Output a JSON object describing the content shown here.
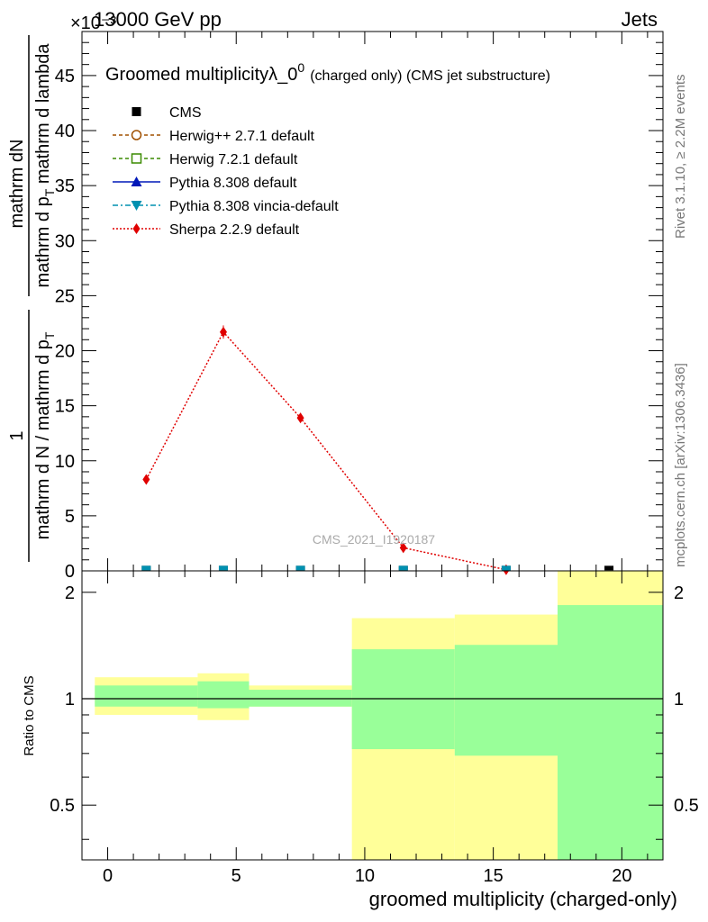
{
  "header": {
    "left": "13000 GeV pp",
    "right": "Jets",
    "exponent": "×10⁻³"
  },
  "chart_data": [
    {
      "type": "scatter",
      "title": "Groomed multiplicity",
      "title_symbol": "λ_0",
      "title_sup": "0",
      "title_note": "(charged only) (CMS jet substructure)",
      "ylabel_numerator": "mathrm dN",
      "ylabel_denominator": "mathrm d p",
      "ylabel_denominator_sub": "T",
      "ylabel_denominator_tail": " mathrm d lambda",
      "ylabel_prefactor_numerator": "1",
      "ylabel_prefactor_denominator": "mathrm d N / mathrm d p",
      "ylabel_prefactor_denominator_sub": "T",
      "xlim": [
        -1,
        21.6
      ],
      "ylim": [
        0,
        49
      ],
      "y_scale_note": "values in units of 1e-3",
      "yticks": [
        0,
        5,
        10,
        15,
        20,
        25,
        30,
        35,
        40,
        45
      ],
      "ytick_labels": [
        "0",
        "5",
        "10",
        "15",
        "20",
        "25",
        "30",
        "35",
        "40",
        "45"
      ],
      "legend_position": "top-left",
      "legend": [
        {
          "label": "CMS",
          "color": "#000000",
          "marker": "square-filled",
          "line": "none"
        },
        {
          "label": "Herwig++ 2.7.1 default",
          "color": "#a05000",
          "marker": "circle-open",
          "line": "dashed"
        },
        {
          "label": "Herwig 7.2.1 default",
          "color": "#3a8a00",
          "marker": "square-open",
          "line": "dashed"
        },
        {
          "label": "Pythia 8.308 default",
          "color": "#0018b8",
          "marker": "triangle-up",
          "line": "solid"
        },
        {
          "label": "Pythia 8.308 vincia-default",
          "color": "#0090b0",
          "marker": "triangle-down",
          "line": "dashdot"
        },
        {
          "label": "Sherpa 2.2.9 default",
          "color": "#e00000",
          "marker": "diamond",
          "line": "dotted"
        }
      ],
      "series": [
        {
          "name": "Sherpa 2.2.9 default",
          "color": "#e00000",
          "x": [
            1.5,
            4.5,
            7.5,
            11.5,
            15.5
          ],
          "y": [
            8.3,
            21.7,
            13.9,
            2.1,
            0.1
          ],
          "err": [
            0.2,
            0.6,
            0.3,
            0.1,
            0.05
          ]
        },
        {
          "name": "CMS",
          "color": "#000000",
          "x": [
            1.5,
            4.5,
            7.5,
            11.5,
            15.5,
            19.5
          ],
          "y": [
            0.05,
            0.05,
            0.05,
            0.05,
            0.05,
            0.05
          ]
        },
        {
          "name": "Pythia 8.308 vincia-default",
          "color": "#0090b0",
          "x": [
            1.5,
            4.5,
            7.5,
            11.5,
            15.5
          ],
          "y": [
            0.05,
            0.05,
            0.05,
            0.05,
            0.05
          ]
        }
      ],
      "watermark": "CMS_2021_I1920187",
      "side_label_top": "Rivet 3.1.10, ≥ 2.2M events",
      "side_label_bottom": "mcplots.cern.ch [arXiv:1306.3436]"
    },
    {
      "type": "bar",
      "title": "",
      "ylabel": "Ratio to CMS",
      "xlabel": "groomed multiplicity (charged-only)",
      "xlim": [
        -1,
        21.6
      ],
      "ylim": [
        0.35,
        2.3
      ],
      "xticks": [
        0,
        5,
        10,
        15,
        20
      ],
      "xtick_labels": [
        "0",
        "5",
        "10",
        "15",
        "20"
      ],
      "yticks": [
        0.5,
        1,
        2
      ],
      "ytick_labels": [
        "0.5",
        "1",
        "2"
      ],
      "reference_line": 1,
      "bands": [
        {
          "x0": -0.5,
          "x1": 3.5,
          "yellow": [
            0.9,
            1.15
          ],
          "green": [
            0.95,
            1.09
          ]
        },
        {
          "x0": 3.5,
          "x1": 5.5,
          "yellow": [
            0.87,
            1.18
          ],
          "green": [
            0.94,
            1.12
          ]
        },
        {
          "x0": 5.5,
          "x1": 9.5,
          "yellow": [
            0.95,
            1.09
          ],
          "green": [
            0.95,
            1.06
          ]
        },
        {
          "x0": 9.5,
          "x1": 13.5,
          "yellow": [
            0.35,
            1.69
          ],
          "green": [
            0.72,
            1.38
          ]
        },
        {
          "x0": 13.5,
          "x1": 17.5,
          "yellow": [
            0.35,
            1.73
          ],
          "green": [
            0.69,
            1.42
          ]
        },
        {
          "x0": 17.5,
          "x1": 21.6,
          "yellow": [
            0.35,
            2.3
          ],
          "green": [
            0.35,
            1.84
          ]
        }
      ],
      "colors": {
        "yellow": "#ffff99",
        "green": "#99ff99"
      }
    }
  ]
}
